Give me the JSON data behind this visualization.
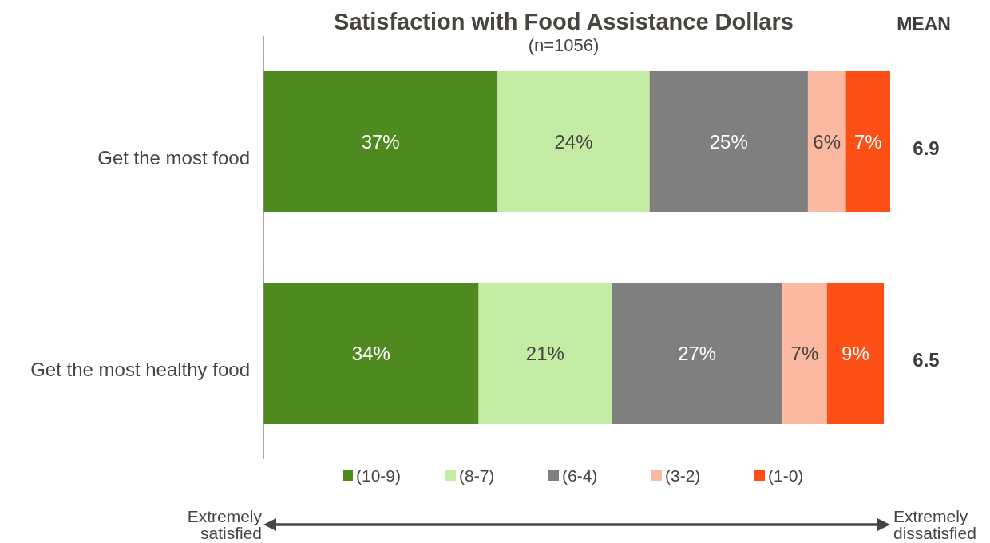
{
  "chart_data": {
    "type": "bar",
    "orientation": "horizontal",
    "stacked": true,
    "title": "Satisfaction with Food Assistance Dollars",
    "subtitle": "(n=1056)",
    "categories": [
      "Get the most food",
      "Get the most healthy food"
    ],
    "series": [
      {
        "name": "(10-9)",
        "color": "#4f8a20",
        "values": [
          37,
          34
        ],
        "value_labels": [
          "37%",
          "34%"
        ]
      },
      {
        "name": "(8-7)",
        "color": "#c4eca5",
        "values": [
          24,
          21
        ],
        "value_labels": [
          "24%",
          "21%"
        ]
      },
      {
        "name": "(6-4)",
        "color": "#7f7f7f",
        "values": [
          25,
          27
        ],
        "value_labels": [
          "25%",
          "27%"
        ]
      },
      {
        "name": "(3-2)",
        "color": "#fcb9a1",
        "values": [
          6,
          7
        ],
        "value_labels": [
          "6%",
          "7%"
        ]
      },
      {
        "name": "(1-0)",
        "color": "#fc5017",
        "values": [
          7,
          9
        ],
        "value_labels": [
          "7%",
          "9%"
        ]
      }
    ],
    "legend": "bottom",
    "annotations": [
      "MEAN",
      "6.9",
      "6.5",
      "Extremely satisfied",
      "Extremely dissatisfied"
    ]
  }
}
